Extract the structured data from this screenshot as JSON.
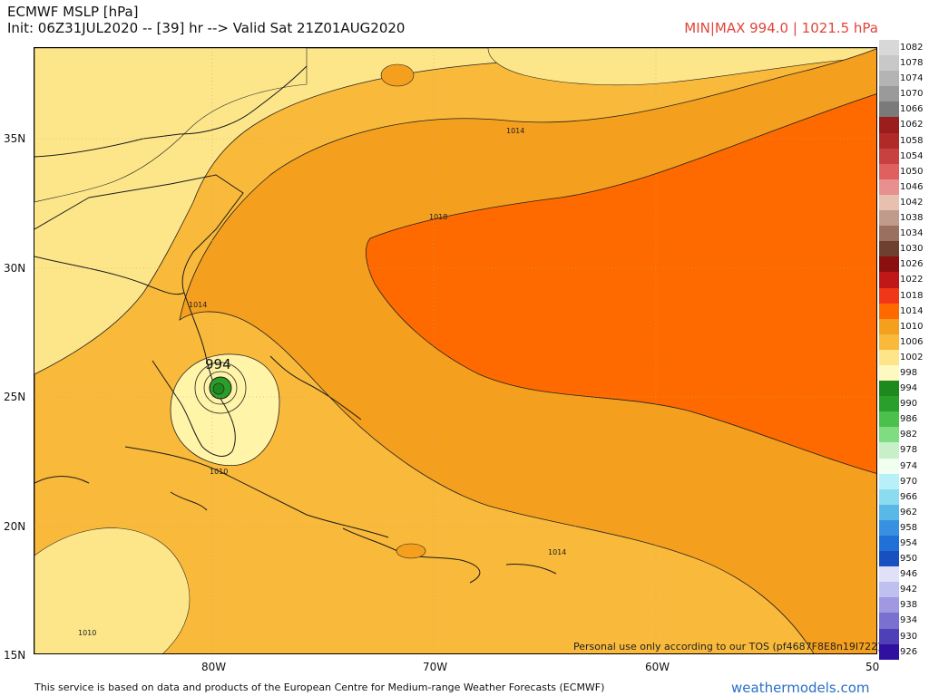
{
  "header": {
    "title": "ECMWF MSLP [hPa]",
    "init_line": "Init: 06Z31JUL2020 -- [39] hr --> Valid Sat 21Z01AUG2020",
    "minmax": "MIN|MAX 994.0 | 1021.5 hPa"
  },
  "map": {
    "lat_labels": [
      "35N",
      "30N",
      "25N",
      "20N",
      "15N"
    ],
    "lon_labels": [
      "80W",
      "70W",
      "60W",
      "50"
    ],
    "contour_labels": [
      "1014",
      "1018",
      "1014",
      "1010",
      "1014",
      "1010"
    ],
    "cyclone_label": "994",
    "tos_note": "Personal use only according to our TOS (pf4687F8E8n19I722)",
    "colors": {
      "land_outline": "#1a1a1a",
      "p1006": "#fff4a8",
      "p1010": "#fde68a",
      "p1014": "#f9b93a",
      "p1018": "#f59f1e",
      "p1022": "#ff6a00",
      "low_994": "#2a9d2a",
      "low_998": "#1e8a1e"
    }
  },
  "legend": {
    "items": [
      {
        "label": "1082",
        "color": "#d8d8d8"
      },
      {
        "label": "1078",
        "color": "#c8c8c8"
      },
      {
        "label": "1074",
        "color": "#b4b4b4"
      },
      {
        "label": "1070",
        "color": "#9a9a9a"
      },
      {
        "label": "1066",
        "color": "#7a7a7a"
      },
      {
        "label": "1062",
        "color": "#9b1e1e"
      },
      {
        "label": "1058",
        "color": "#b02a2a"
      },
      {
        "label": "1054",
        "color": "#c84040"
      },
      {
        "label": "1050",
        "color": "#e06060"
      },
      {
        "label": "1046",
        "color": "#e89090"
      },
      {
        "label": "1042",
        "color": "#e8c0b0"
      },
      {
        "label": "1038",
        "color": "#c09a8a"
      },
      {
        "label": "1034",
        "color": "#9a7060"
      },
      {
        "label": "1030",
        "color": "#6e4030"
      },
      {
        "label": "1026",
        "color": "#8a1010"
      },
      {
        "label": "1022",
        "color": "#c01818"
      },
      {
        "label": "1018",
        "color": "#f03818"
      },
      {
        "label": "1014",
        "color": "#ff6a00"
      },
      {
        "label": "1010",
        "color": "#f59f1e"
      },
      {
        "label": "1006",
        "color": "#f9b93a"
      },
      {
        "label": "1002",
        "color": "#fde68a"
      },
      {
        "label": "998",
        "color": "#fff8c0"
      },
      {
        "label": "994",
        "color": "#1e8a1e"
      },
      {
        "label": "990",
        "color": "#2aa02a"
      },
      {
        "label": "986",
        "color": "#4cc04c"
      },
      {
        "label": "982",
        "color": "#80dc80"
      },
      {
        "label": "978",
        "color": "#c8f0c8"
      },
      {
        "label": "974",
        "color": "#f0fff0"
      },
      {
        "label": "970",
        "color": "#b8f0f8"
      },
      {
        "label": "966",
        "color": "#8cdcf0"
      },
      {
        "label": "962",
        "color": "#5ab8e8"
      },
      {
        "label": "958",
        "color": "#3a90e0"
      },
      {
        "label": "954",
        "color": "#2070d8"
      },
      {
        "label": "950",
        "color": "#1850c0"
      },
      {
        "label": "946",
        "color": "#e0e0f8"
      },
      {
        "label": "942",
        "color": "#c0c0f0"
      },
      {
        "label": "938",
        "color": "#a098e0"
      },
      {
        "label": "934",
        "color": "#7a70d0"
      },
      {
        "label": "930",
        "color": "#5040b8"
      },
      {
        "label": "926",
        "color": "#3010a0"
      }
    ]
  },
  "footer": {
    "credit": "This service is based on data and products of the European Centre for Medium-range Weather Forecasts (ECMWF)",
    "brand": "weathermodels.com"
  }
}
